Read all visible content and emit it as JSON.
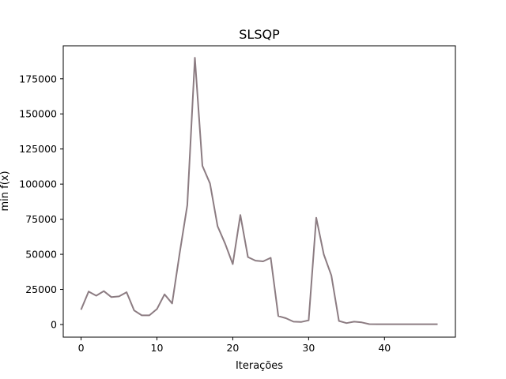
{
  "chart_data": {
    "type": "line",
    "title": "SLSQP",
    "xlabel": "Iterações",
    "ylabel": "min f(x)",
    "xlim": [
      -2.35,
      49.35
    ],
    "ylim": [
      -9000,
      198500
    ],
    "xticks": [
      0,
      10,
      20,
      30,
      40
    ],
    "yticks": [
      0,
      25000,
      50000,
      75000,
      100000,
      125000,
      150000,
      175000
    ],
    "grid": false,
    "line_color": "#8c7c82",
    "series": [
      {
        "x": [
          0,
          1,
          2,
          3,
          4,
          5,
          6,
          7,
          8,
          9,
          10,
          11,
          12,
          13,
          14,
          15,
          16,
          17,
          18,
          19,
          20,
          21,
          22,
          23,
          24,
          25,
          26,
          27,
          28,
          29,
          30,
          31,
          32,
          33,
          34,
          35,
          36,
          37,
          38,
          39,
          40,
          41,
          42,
          43,
          44,
          45,
          46,
          47
        ],
        "values": [
          10500,
          23500,
          20500,
          23800,
          19500,
          20000,
          23000,
          10000,
          6500,
          6500,
          11000,
          21500,
          15000,
          51000,
          85000,
          190000,
          113000,
          100500,
          70000,
          57500,
          43000,
          78000,
          48000,
          45500,
          45000,
          47500,
          6000,
          4500,
          2000,
          1800,
          3000,
          76000,
          50000,
          35000,
          2500,
          1000,
          2000,
          1500,
          300,
          200,
          200,
          200,
          200,
          200,
          200,
          200,
          200,
          200
        ]
      }
    ]
  }
}
